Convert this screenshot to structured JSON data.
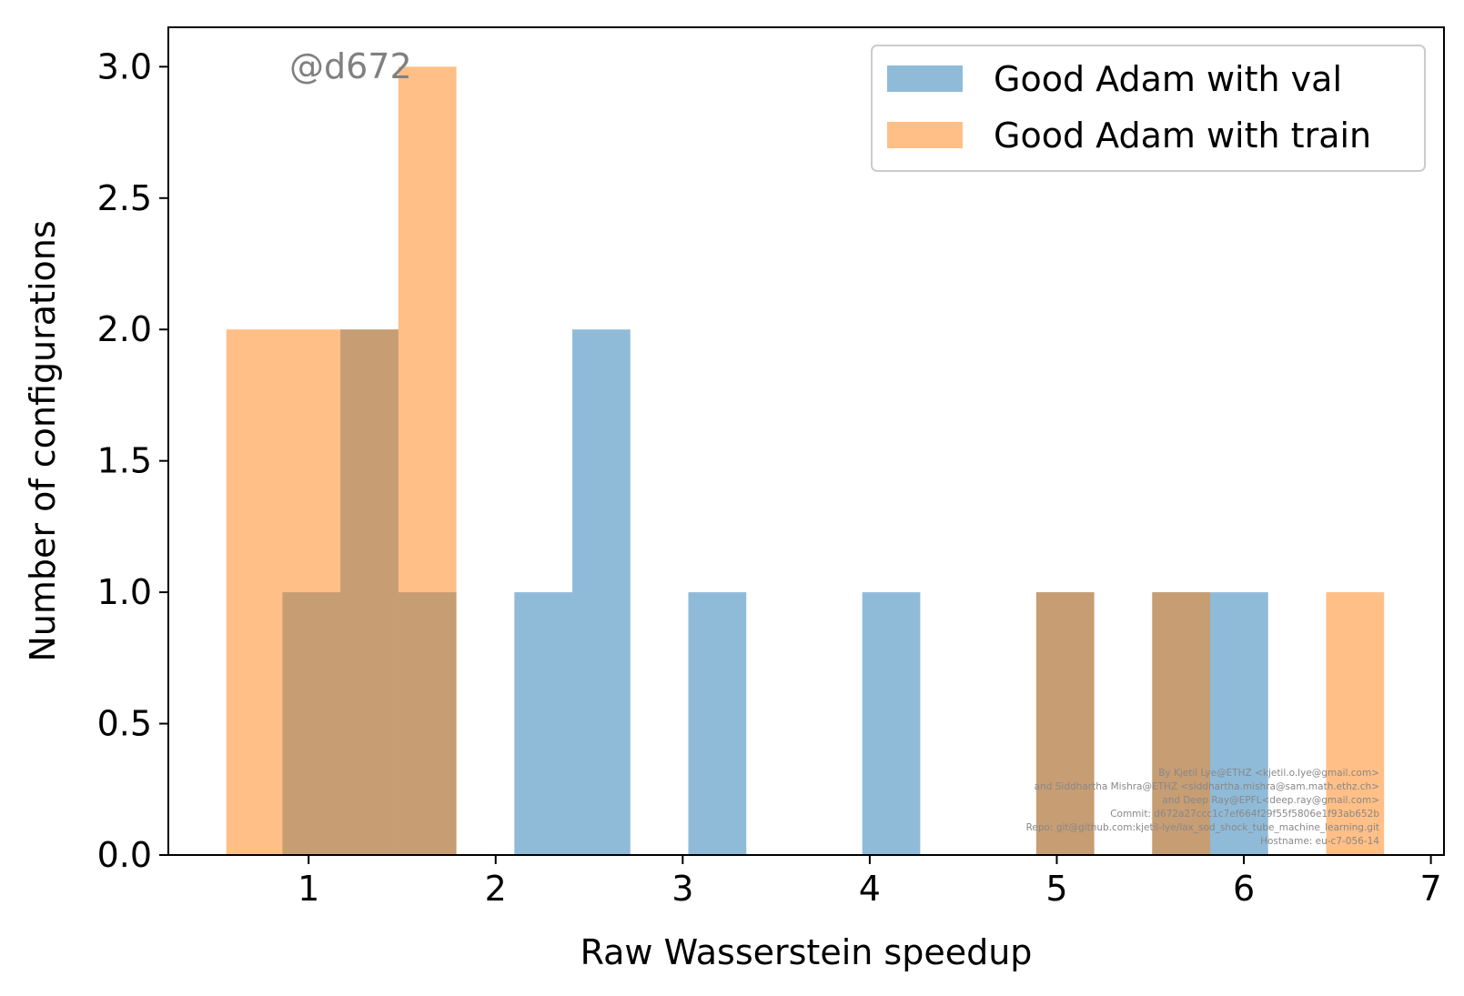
{
  "chart_data": {
    "type": "bar",
    "subtype": "overlapping-histogram",
    "xlabel": "Raw Wasserstein speedup",
    "ylabel": "Number of configurations",
    "xlim": [
      0.25,
      7.07
    ],
    "ylim": [
      0,
      3.15
    ],
    "xticks": [
      1,
      2,
      3,
      4,
      5,
      6,
      7
    ],
    "xtick_labels": [
      "1",
      "2",
      "3",
      "4",
      "5",
      "6",
      "7"
    ],
    "yticks": [
      0.0,
      0.5,
      1.0,
      1.5,
      2.0,
      2.5,
      3.0
    ],
    "ytick_labels": [
      "0.0",
      "0.5",
      "1.0",
      "1.5",
      "2.0",
      "2.5",
      "3.0"
    ],
    "grid": false,
    "legend_position": "top-right",
    "series": [
      {
        "name": "Good Adam with val",
        "color": "#1f77b4",
        "alpha": 0.5,
        "bins": [
          {
            "x0": 0.86,
            "x1": 1.17,
            "count": 1
          },
          {
            "x0": 1.17,
            "x1": 1.48,
            "count": 2
          },
          {
            "x0": 1.48,
            "x1": 1.79,
            "count": 1
          },
          {
            "x0": 2.1,
            "x1": 2.41,
            "count": 1
          },
          {
            "x0": 2.41,
            "x1": 2.72,
            "count": 2
          },
          {
            "x0": 3.03,
            "x1": 3.34,
            "count": 1
          },
          {
            "x0": 3.96,
            "x1": 4.27,
            "count": 1
          },
          {
            "x0": 4.89,
            "x1": 5.2,
            "count": 1
          },
          {
            "x0": 5.51,
            "x1": 5.82,
            "count": 1
          },
          {
            "x0": 5.82,
            "x1": 6.13,
            "count": 1
          }
        ]
      },
      {
        "name": "Good Adam with train",
        "color": "#ff7f0e",
        "alpha": 0.5,
        "bins": [
          {
            "x0": 0.56,
            "x1": 1.17,
            "count": 2
          },
          {
            "x0": 1.17,
            "x1": 1.48,
            "count": 2
          },
          {
            "x0": 1.48,
            "x1": 1.79,
            "count": 3
          },
          {
            "x0": 4.89,
            "x1": 5.2,
            "count": 1
          },
          {
            "x0": 5.51,
            "x1": 5.82,
            "count": 1
          },
          {
            "x0": 6.44,
            "x1": 6.75,
            "count": 1
          }
        ]
      }
    ]
  },
  "watermark": "@d672",
  "credits": [
    "By Kjetil Lye@ETHZ <kjetil.o.lye@gmail.com>",
    "and Siddhartha Mishra@ETHZ <siddhartha.mishra@sam.math.ethz.ch>",
    "and Deep Ray@EPFL<deep.ray@gmail.com>",
    "Commit: d672a27ccc1c7ef664f29f55f5806e1f93ab652b",
    "Repo: git@github.com:kjetil-lye/lax_sod_shock_tube_machine_learning.git",
    "Hostname: eu-c7-056-14"
  ]
}
